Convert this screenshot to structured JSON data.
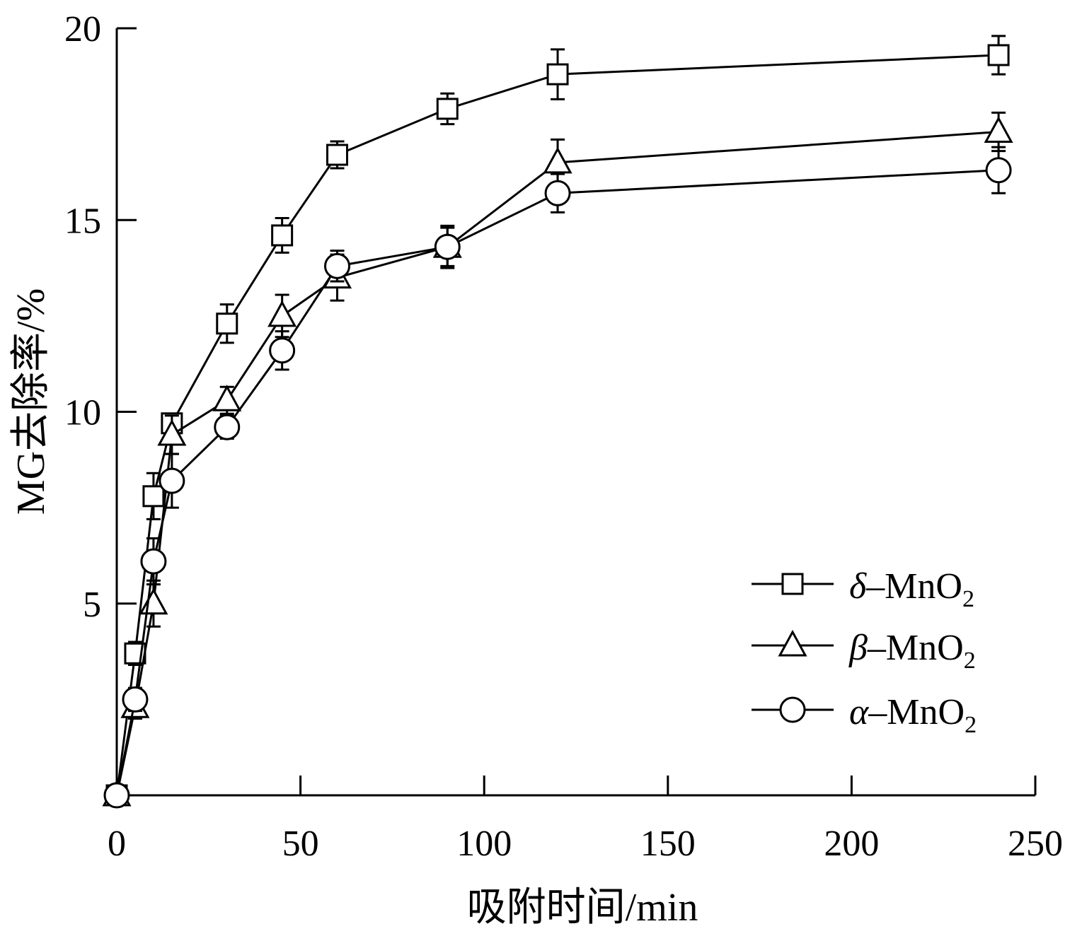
{
  "chart_data": {
    "type": "line",
    "xlabel": "吸附时间/min",
    "ylabel": "MG去除率/%",
    "xlim": [
      0,
      250
    ],
    "ylim": [
      0,
      20
    ],
    "x_ticks": [
      0,
      50,
      100,
      150,
      200,
      250
    ],
    "y_ticks": [
      5,
      10,
      15,
      20
    ],
    "grid": false,
    "legend_position": "bottom-right",
    "x": [
      0,
      5,
      10,
      15,
      30,
      45,
      60,
      90,
      120,
      240
    ],
    "series": [
      {
        "name": "δ–MnO2",
        "prefix": "δ",
        "suffix": "–MnO",
        "sub": "2",
        "marker": "square",
        "values": [
          0.0,
          3.7,
          7.8,
          9.7,
          12.3,
          14.6,
          16.7,
          17.9,
          18.8,
          19.3
        ],
        "errors": [
          0.0,
          0.3,
          0.6,
          0.2,
          0.5,
          0.45,
          0.35,
          0.4,
          0.65,
          0.5
        ]
      },
      {
        "name": "β–MnO2",
        "prefix": "β",
        "suffix": "–MnO",
        "sub": "2",
        "marker": "triangle",
        "values": [
          0.0,
          2.3,
          5.0,
          9.4,
          10.3,
          12.5,
          13.5,
          14.3,
          16.5,
          17.3
        ],
        "errors": [
          0.0,
          0.3,
          0.6,
          0.5,
          0.35,
          0.55,
          0.6,
          0.55,
          0.6,
          0.5
        ]
      },
      {
        "name": "α–MnO2",
        "prefix": "α",
        "suffix": "–MnO",
        "sub": "2",
        "marker": "circle",
        "values": [
          0.0,
          2.5,
          6.1,
          8.2,
          9.6,
          11.6,
          13.8,
          14.3,
          15.7,
          16.3
        ],
        "errors": [
          0.0,
          0.3,
          0.6,
          0.7,
          0.3,
          0.5,
          0.4,
          0.5,
          0.5,
          0.6
        ]
      }
    ]
  }
}
